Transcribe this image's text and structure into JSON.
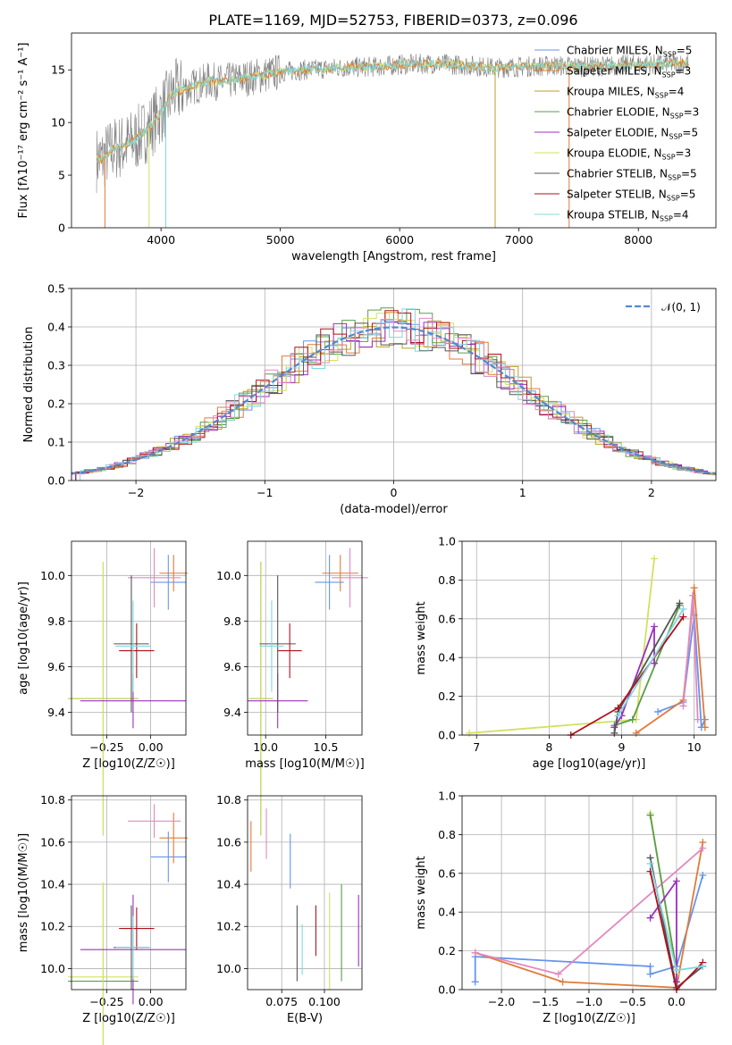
{
  "title": "PLATE=1169, MJD=52753, FIBERID=0373, z=0.096",
  "colors": {
    "chabrier_miles": "#6495ed",
    "salpeter_miles": "#e07b39",
    "kroupa_miles": "#b8a020",
    "chabrier_elodie": "#5a9e4a",
    "salpeter_elodie": "#9b30c0",
    "kroupa_elodie": "#d4e060",
    "chabrier_stelib": "#555555",
    "salpeter_stelib": "#b0101e",
    "kroupa_stelib": "#80d8e0",
    "data": "#808080",
    "gauss": "#5588cc",
    "pink": "#e388c0",
    "green2": "#9acd32"
  },
  "spectrum": {
    "xlabel": "wavelength [Angstrom, rest frame]",
    "ylabel": "Flux [fλ10⁻¹⁷ erg cm⁻² s⁻¹ A⁻¹]",
    "x_ticks": [
      "4000",
      "5000",
      "6000",
      "7000",
      "8000"
    ],
    "y_ticks": [
      "0",
      "5",
      "10",
      "15"
    ],
    "legend": [
      "Chabrier MILES, N_SSP=5",
      "Salpeter MILES, N_SSP=3",
      "Kroupa MILES, N_SSP=4",
      "Chabrier ELODIE, N_SSP=3",
      "Salpeter ELODIE, N_SSP=5",
      "Kroupa ELODIE, N_SSP=3",
      "Chabrier STELIB, N_SSP=5",
      "Salpeter STELIB, N_SSP=5",
      "Kroupa STELIB, N_SSP=4"
    ]
  },
  "residuals": {
    "xlabel": "(data-model)/error",
    "ylabel": "Normed distribution",
    "x_ticks": [
      "−2",
      "−1",
      "0",
      "1",
      "2"
    ],
    "y_ticks": [
      "0.0",
      "0.1",
      "0.2",
      "0.3",
      "0.4",
      "0.5"
    ],
    "legend": "𝒩(0, 1)"
  },
  "panel_age_z": {
    "xlabel": "Z [log10(Z/Z☉)]",
    "ylabel": "age  [log10(age/yr)]",
    "x_ticks": [
      "−0.25",
      "0.00"
    ],
    "y_ticks": [
      "9.4",
      "9.6",
      "9.8",
      "10.0"
    ]
  },
  "panel_age_mass": {
    "xlabel": "mass [log10(M/M☉)]",
    "x_ticks": [
      "10.0",
      "10.5"
    ],
    "y_ticks": [
      "9.4",
      "9.6",
      "9.8",
      "10.0"
    ]
  },
  "panel_weight_age": {
    "xlabel": "age  [log10(age/yr)]",
    "ylabel": "mass weight",
    "x_ticks": [
      "7",
      "8",
      "9",
      "10"
    ],
    "y_ticks": [
      "0.0",
      "0.2",
      "0.4",
      "0.6",
      "0.8",
      "1.0"
    ]
  },
  "panel_mass_z": {
    "xlabel": "Z [log10(Z/Z☉)]",
    "ylabel": "mass [log10(M/M☉)]",
    "x_ticks": [
      "−0.25",
      "0.00"
    ],
    "y_ticks": [
      "10.0",
      "10.2",
      "10.4",
      "10.6",
      "10.8"
    ]
  },
  "panel_mass_ebv": {
    "xlabel": "E(B-V)",
    "x_ticks": [
      "0.075",
      "0.100"
    ],
    "y_ticks": [
      "10.0",
      "10.2",
      "10.4",
      "10.6",
      "10.8"
    ]
  },
  "panel_weight_z": {
    "xlabel": "Z [log10(Z/Z☉)]",
    "ylabel": "mass weight",
    "x_ticks": [
      "−2.0",
      "−1.5",
      "−1.0",
      "−0.5",
      "0.0"
    ],
    "y_ticks": [
      "0.0",
      "0.2",
      "0.4",
      "0.6",
      "0.8",
      "1.0"
    ]
  },
  "chart_data": [
    {
      "type": "line",
      "id": "spectrum",
      "xlim": [
        3250,
        8650
      ],
      "ylim": [
        0,
        18.5
      ],
      "x": [
        3500,
        3600,
        3700,
        3800,
        3900,
        4000,
        4100,
        4200,
        4300,
        4400,
        4500,
        4700,
        5000,
        5200,
        5500,
        5800,
        6000,
        6300,
        6600,
        6800,
        7000,
        7300,
        7600,
        8000,
        8400
      ],
      "model": [
        6.5,
        7.5,
        7.8,
        8.5,
        9.5,
        11,
        12.8,
        13.2,
        13.5,
        14,
        13.8,
        14.2,
        14.8,
        15,
        15.2,
        15.3,
        15.5,
        15.6,
        15.4,
        15.2,
        15.3,
        15.4,
        15.3,
        15.5,
        15.6
      ]
    },
    {
      "type": "line",
      "id": "residual_histograms",
      "xlim": [
        -2.5,
        2.5
      ],
      "ylim": [
        0,
        0.5
      ],
      "gaussian": {
        "mu": 0,
        "sigma": 1
      }
    },
    {
      "type": "scatter",
      "id": "age_vs_z",
      "xlim": [
        -0.45,
        0.2
      ],
      "ylim": [
        9.3,
        10.15
      ],
      "points": [
        {
          "series": "Chabrier MILES",
          "x": 0.1,
          "y": 9.97,
          "xerr": 0.1,
          "yerr": 0.12
        },
        {
          "series": "Salpeter MILES",
          "x": 0.13,
          "y": 10.01,
          "xerr": 0.08,
          "yerr": 0.08
        },
        {
          "series": "pink",
          "x": 0.02,
          "y": 9.99,
          "xerr": 0.15,
          "yerr": 0.13
        },
        {
          "series": "Chabrier ELODIE",
          "x": -0.27,
          "y": 9.46,
          "xerr": 0.2,
          "yerr": 0.6
        },
        {
          "series": "Kroupa ELODIE",
          "x": -0.27,
          "y": 9.46,
          "xerr": 0.2,
          "yerr": 0.6
        },
        {
          "series": "Salpeter ELODIE",
          "x": -0.1,
          "y": 9.45,
          "xerr": 0.3,
          "yerr": 0.12
        },
        {
          "series": "Chabrier STELIB",
          "x": -0.11,
          "y": 9.7,
          "xerr": 0.1,
          "yerr": 0.3
        },
        {
          "series": "Salpeter STELIB",
          "x": -0.08,
          "y": 9.67,
          "xerr": 0.1,
          "yerr": 0.12
        },
        {
          "series": "Kroupa STELIB",
          "x": -0.1,
          "y": 9.69,
          "xerr": 0.1,
          "yerr": 0.2
        }
      ]
    },
    {
      "type": "scatter",
      "id": "age_vs_mass",
      "xlim": [
        9.85,
        10.8
      ],
      "ylim": [
        9.3,
        10.15
      ],
      "points": [
        {
          "series": "Chabrier MILES",
          "x": 10.53,
          "y": 9.97,
          "xerr": 0.12,
          "yerr": 0.12
        },
        {
          "series": "Salpeter MILES",
          "x": 10.62,
          "y": 10.01,
          "xerr": 0.15,
          "yerr": 0.08
        },
        {
          "series": "pink",
          "x": 10.7,
          "y": 9.99,
          "xerr": 0.15,
          "yerr": 0.13
        },
        {
          "series": "Chabrier ELODIE",
          "x": 9.96,
          "y": 9.46,
          "xerr": 0.1,
          "yerr": 0.6
        },
        {
          "series": "Kroupa ELODIE",
          "x": 9.96,
          "y": 9.46,
          "xerr": 0.1,
          "yerr": 0.6
        },
        {
          "series": "Salpeter ELODIE",
          "x": 10.1,
          "y": 9.45,
          "xerr": 0.25,
          "yerr": 0.12
        },
        {
          "series": "Chabrier STELIB",
          "x": 10.1,
          "y": 9.7,
          "xerr": 0.15,
          "yerr": 0.3
        },
        {
          "series": "Salpeter STELIB",
          "x": 10.2,
          "y": 9.67,
          "xerr": 0.1,
          "yerr": 0.12
        },
        {
          "series": "Kroupa STELIB",
          "x": 10.05,
          "y": 9.69,
          "xerr": 0.1,
          "yerr": 0.2
        }
      ]
    },
    {
      "type": "line",
      "id": "weight_vs_age",
      "xlim": [
        6.8,
        10.3
      ],
      "ylim": [
        0,
        1
      ],
      "series": [
        {
          "name": "Chabrier MILES",
          "x": [
            9.5,
            9.85,
            10.0,
            10.1,
            10.15
          ],
          "y": [
            0.12,
            0.17,
            0.62,
            0.04,
            0.08
          ]
        },
        {
          "name": "Salpeter MILES",
          "x": [
            9.2,
            9.85,
            10.0,
            10.15
          ],
          "y": [
            0.01,
            0.18,
            0.76,
            0.04
          ]
        },
        {
          "name": "pink",
          "x": [
            9.85,
            9.98,
            10.05
          ],
          "y": [
            0.15,
            0.72,
            0.08
          ]
        },
        {
          "name": "Kroupa ELODIE",
          "x": [
            6.9,
            9.2,
            9.45
          ],
          "y": [
            0.01,
            0.08,
            0.91
          ]
        },
        {
          "name": "Chabrier ELODIE",
          "x": [
            8.9,
            9.15,
            9.8
          ],
          "y": [
            0.05,
            0.08,
            0.67
          ]
        },
        {
          "name": "Salpeter ELODIE",
          "x": [
            8.9,
            9.0,
            9.45,
            9.45
          ],
          "y": [
            0.04,
            0.1,
            0.56,
            0.37
          ]
        },
        {
          "name": "Chabrier STELIB",
          "x": [
            8.9,
            8.95,
            9.8
          ],
          "y": [
            0.01,
            0.12,
            0.68
          ]
        },
        {
          "name": "Salpeter STELIB",
          "x": [
            8.3,
            8.95,
            9.85
          ],
          "y": [
            0.0,
            0.14,
            0.61
          ]
        },
        {
          "name": "Kroupa STELIB",
          "x": [
            8.95,
            9.85
          ],
          "y": [
            0.1,
            0.65
          ]
        }
      ]
    },
    {
      "type": "scatter",
      "id": "mass_vs_z",
      "xlim": [
        -0.45,
        0.2
      ],
      "ylim": [
        9.9,
        10.82
      ],
      "points": [
        {
          "series": "Chabrier MILES",
          "x": 0.1,
          "y": 10.53,
          "xerr": 0.1,
          "yerr": 0.12
        },
        {
          "series": "Salpeter MILES",
          "x": 0.13,
          "y": 10.62,
          "xerr": 0.08,
          "yerr": 0.12
        },
        {
          "series": "pink",
          "x": 0.02,
          "y": 10.7,
          "xerr": 0.15,
          "yerr": 0.08
        },
        {
          "series": "Chabrier ELODIE",
          "x": -0.27,
          "y": 9.94,
          "xerr": 0.2,
          "yerr": 0.45
        },
        {
          "series": "Kroupa ELODIE",
          "x": -0.27,
          "y": 9.96,
          "xerr": 0.2,
          "yerr": 0.45
        },
        {
          "series": "Salpeter ELODIE",
          "x": -0.1,
          "y": 10.09,
          "xerr": 0.3,
          "yerr": 0.26
        },
        {
          "series": "Chabrier STELIB",
          "x": -0.11,
          "y": 10.1,
          "xerr": 0.1,
          "yerr": 0.2
        },
        {
          "series": "Salpeter STELIB",
          "x": -0.08,
          "y": 10.19,
          "xerr": 0.1,
          "yerr": 0.1
        },
        {
          "series": "Kroupa STELIB",
          "x": -0.1,
          "y": 10.1,
          "xerr": 0.1,
          "yerr": 0.15
        }
      ]
    },
    {
      "type": "scatter",
      "id": "mass_vs_ebv",
      "xlim": [
        0.055,
        0.122
      ],
      "ylim": [
        9.9,
        10.82
      ],
      "points": [
        {
          "series": "Salpeter MILES",
          "x": 0.057,
          "y": 10.58,
          "yerr": 0.12
        },
        {
          "series": "pink",
          "x": 0.066,
          "y": 10.64,
          "yerr": 0.12
        },
        {
          "series": "Chabrier MILES",
          "x": 0.08,
          "y": 10.51,
          "yerr": 0.13
        },
        {
          "series": "Chabrier STELIB",
          "x": 0.084,
          "y": 10.12,
          "yerr": 0.18
        },
        {
          "series": "Kroupa STELIB",
          "x": 0.087,
          "y": 10.09,
          "yerr": 0.12
        },
        {
          "series": "Salpeter STELIB",
          "x": 0.095,
          "y": 10.18,
          "yerr": 0.12
        },
        {
          "series": "Kroupa ELODIE",
          "x": 0.103,
          "y": 10.13,
          "yerr": 0.23
        },
        {
          "series": "Chabrier ELODIE",
          "x": 0.11,
          "y": 10.17,
          "yerr": 0.23
        },
        {
          "series": "Salpeter ELODIE",
          "x": 0.12,
          "y": 10.18,
          "yerr": 0.17
        }
      ]
    },
    {
      "type": "line",
      "id": "weight_vs_z",
      "xlim": [
        -2.45,
        0.45
      ],
      "ylim": [
        0,
        1
      ],
      "series": [
        {
          "name": "Chabrier MILES",
          "x": [
            -2.3,
            -2.3,
            -0.3,
            -0.3,
            0.0,
            0.3
          ],
          "y": [
            0.04,
            0.17,
            0.12,
            0.08,
            0.12,
            0.59
          ]
        },
        {
          "name": "Salpeter MILES",
          "x": [
            -2.3,
            -1.3,
            0.0,
            0.0,
            0.3
          ],
          "y": [
            0.19,
            0.04,
            0.01,
            0.01,
            0.76
          ]
        },
        {
          "name": "pink",
          "x": [
            -2.3,
            -1.35,
            0.3
          ],
          "y": [
            0.19,
            0.08,
            0.73
          ]
        },
        {
          "name": "Kroupa ELODIE",
          "x": [
            -0.3,
            0.0
          ],
          "y": [
            0.91,
            0.08
          ]
        },
        {
          "name": "Chabrier ELODIE",
          "x": [
            -0.3,
            0.0
          ],
          "y": [
            0.9,
            0.1
          ]
        },
        {
          "name": "Salpeter ELODIE",
          "x": [
            -0.3,
            0.0,
            0.0
          ],
          "y": [
            0.37,
            0.56,
            0.04
          ]
        },
        {
          "name": "Chabrier STELIB",
          "x": [
            -0.3,
            0.0,
            0.3
          ],
          "y": [
            0.68,
            0.01,
            0.12
          ]
        },
        {
          "name": "Salpeter STELIB",
          "x": [
            -0.3,
            0.0,
            0.3
          ],
          "y": [
            0.61,
            0.0,
            0.14
          ]
        },
        {
          "name": "Kroupa STELIB",
          "x": [
            -0.3,
            0.0,
            0.3
          ],
          "y": [
            0.65,
            0.1,
            0.12
          ]
        }
      ]
    }
  ]
}
